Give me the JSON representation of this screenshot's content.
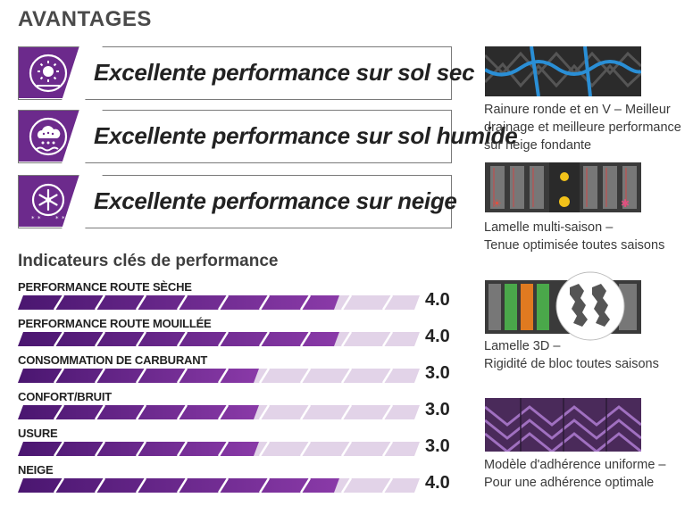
{
  "title": "AVANTAGES",
  "benefits": [
    {
      "text": "Excellente performance sur sol sec",
      "icon": "sun-icon"
    },
    {
      "text": "Excellente performance sur sol humide",
      "icon": "rain-cloud-icon"
    },
    {
      "text": "Excellente performance sur neige",
      "icon": "snowflake-icon"
    }
  ],
  "kpi_title": "Indicateurs clés de performance",
  "kpis": [
    {
      "label": "PERFORMANCE ROUTE SÈCHE",
      "value": "4.0",
      "score": 4.0
    },
    {
      "label": "PERFORMANCE ROUTE MOUILLÉE",
      "value": "4.0",
      "score": 4.0
    },
    {
      "label": "CONSOMMATION DE CARBURANT",
      "value": "3.0",
      "score": 3.0
    },
    {
      "label": "CONFORT/BRUIT",
      "value": "3.0",
      "score": 3.0
    },
    {
      "label": "USURE",
      "value": "3.0",
      "score": 3.0
    },
    {
      "label": "NEIGE",
      "value": "4.0",
      "score": 4.0
    }
  ],
  "kpi_max": 5,
  "features": [
    {
      "line1": "Rainure ronde et en V – Meilleur",
      "line2": "drainage et meilleure performance",
      "line3": "sur neige fondante"
    },
    {
      "line1": "Lamelle multi-saison –",
      "line2": "Tenue optimisée toutes saisons"
    },
    {
      "line1": "Lamelle 3D –",
      "line2": "Rigidité de bloc toutes saisons"
    },
    {
      "line1": "Modèle d'adhérence uniforme –",
      "line2": "Pour une adhérence optimale"
    }
  ],
  "colors": {
    "accent": "#6c2a8c",
    "bar_light": "#e2d3e8",
    "text": "#222222"
  }
}
